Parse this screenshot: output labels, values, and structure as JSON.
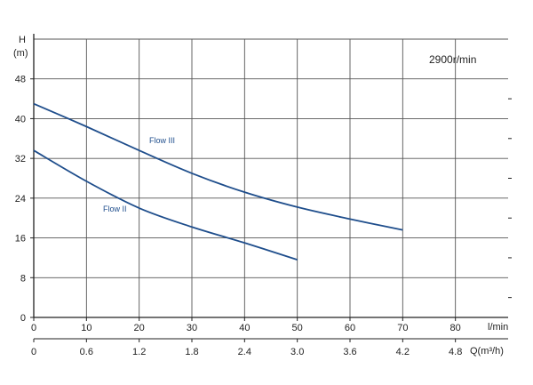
{
  "chart_data": {
    "type": "line",
    "title": "",
    "speed_label": "2900r/min",
    "ylabel": "H",
    "yunit": "(m)",
    "y_ticks": [
      0,
      8,
      16,
      24,
      32,
      40,
      48
    ],
    "ylim": [
      0,
      56
    ],
    "xlabel_primary": "l/min",
    "x_ticks_primary": [
      0,
      10,
      20,
      30,
      40,
      50,
      60,
      70,
      80
    ],
    "xlim": [
      0,
      90
    ],
    "xlabel_secondary": "Q(m³/h)",
    "x_ticks_secondary": [
      "0",
      "0.6",
      "1.2",
      "1.8",
      "2.4",
      "3.0",
      "3.6",
      "4.2",
      "4.8"
    ],
    "grid": true,
    "line_color": "#1f4e8c",
    "series": [
      {
        "name": "Flow III",
        "x": [
          0,
          10,
          20,
          30,
          40,
          50,
          60,
          70
        ],
        "y": [
          43,
          38.4,
          33.6,
          29,
          25.2,
          22.2,
          19.8,
          17.6
        ]
      },
      {
        "name": "Flow II",
        "x": [
          0,
          10,
          20,
          30,
          40,
          50
        ],
        "y": [
          33.6,
          27.4,
          22,
          18.2,
          15,
          11.6
        ]
      }
    ]
  }
}
